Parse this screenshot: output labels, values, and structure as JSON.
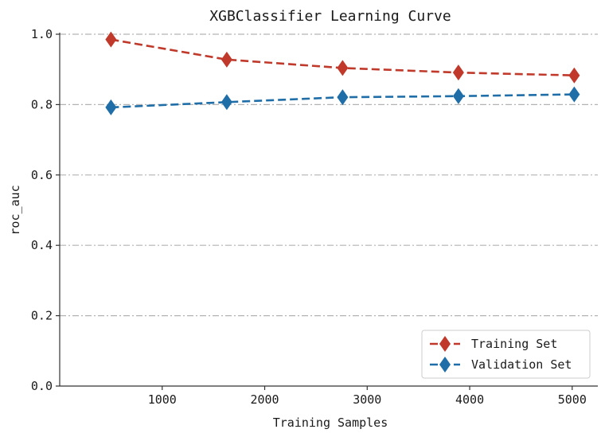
{
  "chart_data": {
    "type": "line",
    "title": "XGBClassifier Learning Curve",
    "xlabel": "Training Samples",
    "ylabel": "roc_auc",
    "xlim": [
      0,
      5250
    ],
    "ylim": [
      0,
      1.0
    ],
    "x": [
      500,
      1630,
      2760,
      3890,
      5020
    ],
    "xticks": [
      1000,
      2000,
      3000,
      4000,
      5000
    ],
    "yticks": [
      0.0,
      0.2,
      0.4,
      0.6,
      0.8,
      1.0
    ],
    "xtick_labels": [
      "1000",
      "2000",
      "3000",
      "4000",
      "5000"
    ],
    "ytick_labels": [
      "0.0",
      "0.2",
      "0.4",
      "0.6",
      "0.8",
      "1.0"
    ],
    "grid": "y-dashdot",
    "legend_position": "bottom-right",
    "series": [
      {
        "name": "Training Set",
        "color": "#c0392b",
        "marker": "diamond",
        "linestyle": "dashed",
        "values": [
          0.985,
          0.928,
          0.904,
          0.891,
          0.883
        ]
      },
      {
        "name": "Validation Set",
        "color": "#1f6ea8",
        "marker": "diamond",
        "linestyle": "dashed",
        "values": [
          0.792,
          0.807,
          0.821,
          0.824,
          0.829
        ]
      }
    ]
  }
}
